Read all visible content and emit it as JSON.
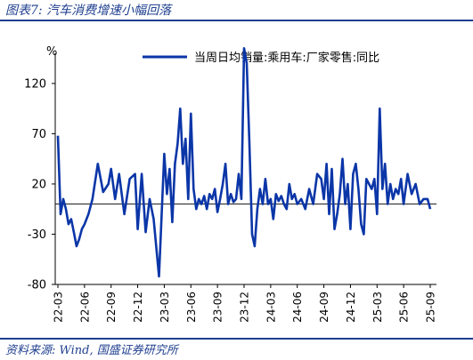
{
  "header": {
    "title": "图表7:  汽车消费增速小幅回落"
  },
  "footer": {
    "source": "资料来源:  Wind,  国盛证券研究所"
  },
  "colors": {
    "line": "#0b36a8",
    "accent": "#1f3f8f",
    "zero_line": "#000000",
    "axis": "#000000"
  },
  "chart_data": {
    "type": "line",
    "title": "",
    "xlabel": "",
    "ylabel": "%",
    "ylim": [
      -80,
      150
    ],
    "yticks": [
      -80,
      -30,
      20,
      70,
      120
    ],
    "grid": false,
    "legend": "top-right",
    "zero_line": true,
    "xticks": [
      "22-03",
      "22-06",
      "22-09",
      "22-12",
      "23-03",
      "23-06",
      "23-09",
      "23-12",
      "24-03",
      "24-06",
      "24-09",
      "24-12",
      "25-03",
      "25-06",
      "25-09"
    ],
    "series": [
      {
        "name": "当周日均销量:乘用车:厂家零售:同比",
        "x": [
          0.0,
          0.1,
          0.2,
          0.3,
          0.4,
          0.5,
          0.6,
          0.7,
          0.8,
          0.9,
          1.0,
          1.15,
          1.3,
          1.5,
          1.7,
          1.9,
          2.0,
          2.15,
          2.3,
          2.5,
          2.7,
          2.9,
          3.0,
          3.15,
          3.3,
          3.45,
          3.6,
          3.8,
          4.0,
          4.1,
          4.2,
          4.3,
          4.4,
          4.5,
          4.6,
          4.7,
          4.8,
          4.9,
          5.0,
          5.1,
          5.2,
          5.3,
          5.4,
          5.5,
          5.6,
          5.7,
          5.8,
          5.9,
          6.0,
          6.1,
          6.2,
          6.3,
          6.4,
          6.5,
          6.6,
          6.7,
          6.8,
          6.9,
          7.0,
          7.1,
          7.2,
          7.3,
          7.4,
          7.5,
          7.6,
          7.7,
          7.8,
          7.9,
          8.0,
          8.1,
          8.2,
          8.3,
          8.4,
          8.5,
          8.6,
          8.7,
          8.8,
          8.9,
          9.0,
          9.15,
          9.3,
          9.45,
          9.6,
          9.75,
          9.9,
          10.0,
          10.1,
          10.2,
          10.3,
          10.4,
          10.5,
          10.6,
          10.7,
          10.8,
          10.9,
          11.0,
          11.1,
          11.2,
          11.3,
          11.4,
          11.5,
          11.6,
          11.7,
          11.8,
          11.9,
          12.0,
          12.1,
          12.2,
          12.3,
          12.4,
          12.5,
          12.6,
          12.7,
          12.8,
          12.9,
          13.0,
          13.15,
          13.3,
          13.45,
          13.6,
          13.75,
          13.9,
          14.0
        ],
        "values": [
          68,
          -10,
          5,
          -5,
          -20,
          -15,
          -28,
          -42,
          -35,
          -25,
          -20,
          -10,
          5,
          40,
          12,
          20,
          35,
          5,
          30,
          -10,
          25,
          30,
          -25,
          30,
          -28,
          5,
          -15,
          -72,
          50,
          10,
          35,
          -18,
          40,
          60,
          95,
          40,
          65,
          5,
          90,
          15,
          -5,
          5,
          0,
          8,
          -5,
          10,
          5,
          15,
          -8,
          5,
          20,
          40,
          0,
          10,
          2,
          5,
          30,
          5,
          155,
          140,
          60,
          -30,
          -42,
          -5,
          15,
          0,
          25,
          0,
          5,
          -15,
          10,
          3,
          8,
          0,
          -5,
          20,
          5,
          10,
          0,
          5,
          -5,
          15,
          0,
          30,
          25,
          5,
          40,
          -10,
          35,
          -25,
          -10,
          10,
          45,
          0,
          20,
          -25,
          30,
          40,
          15,
          -20,
          -30,
          25,
          20,
          15,
          25,
          -10,
          95,
          15,
          40,
          0,
          20,
          5,
          15,
          10,
          25,
          0,
          30,
          10,
          20,
          0,
          5,
          5,
          -5
        ]
      }
    ]
  }
}
